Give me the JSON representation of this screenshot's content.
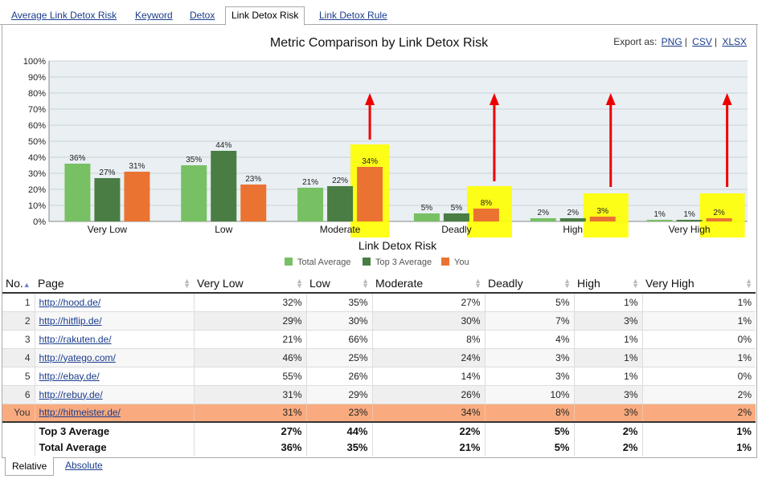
{
  "tabs": [
    {
      "label": "Average Link Detox Risk"
    },
    {
      "label": "Keyword"
    },
    {
      "label": "Detox"
    },
    {
      "label": "Link Detox Risk"
    },
    {
      "label": "Link Detox Rule"
    }
  ],
  "export": {
    "label": "Export as:",
    "png": "PNG",
    "csv": "CSV",
    "xlsx": "XLSX"
  },
  "colors": {
    "total_avg": "#77c063",
    "top3_avg": "#4a7d43",
    "you": "#ea7332",
    "highlight": "#ffff00",
    "arrow": "#ee0000",
    "you_row": "#f9ab7f"
  },
  "chart_data": {
    "type": "bar",
    "title": "Metric Comparison by Link Detox Risk",
    "xlabel": "Link Detox Risk",
    "ylabel": "",
    "ylim": [
      0,
      100
    ],
    "yticks": [
      "0%",
      "10%",
      "20%",
      "30%",
      "40%",
      "50%",
      "60%",
      "70%",
      "80%",
      "90%",
      "100%"
    ],
    "categories": [
      "Very Low",
      "Low",
      "Moderate",
      "Deadly",
      "High",
      "Very High"
    ],
    "series": [
      {
        "name": "Total Average",
        "values": [
          36,
          35,
          21,
          5,
          2,
          1
        ]
      },
      {
        "name": "Top 3 Average",
        "values": [
          27,
          44,
          22,
          5,
          2,
          1
        ]
      },
      {
        "name": "You",
        "values": [
          31,
          23,
          34,
          8,
          3,
          2
        ]
      }
    ],
    "legend": "bottom",
    "grid": true,
    "highlighted_series": "You",
    "arrow_categories": [
      "Moderate",
      "Deadly",
      "High",
      "Very High"
    ]
  },
  "table": {
    "headers": [
      "No.",
      "Page",
      "Very Low",
      "Low",
      "Moderate",
      "Deadly",
      "High",
      "Very High"
    ],
    "rows": [
      {
        "no": "1",
        "page": "http://hood.de/",
        "vals": [
          "32%",
          "35%",
          "27%",
          "5%",
          "1%",
          "1%"
        ]
      },
      {
        "no": "2",
        "page": "http://hitflip.de/",
        "vals": [
          "29%",
          "30%",
          "30%",
          "7%",
          "3%",
          "1%"
        ]
      },
      {
        "no": "3",
        "page": "http://rakuten.de/",
        "vals": [
          "21%",
          "66%",
          "8%",
          "4%",
          "1%",
          "0%"
        ]
      },
      {
        "no": "4",
        "page": "http://yatego.com/",
        "vals": [
          "46%",
          "25%",
          "24%",
          "3%",
          "1%",
          "1%"
        ]
      },
      {
        "no": "5",
        "page": "http://ebay.de/",
        "vals": [
          "55%",
          "26%",
          "14%",
          "3%",
          "1%",
          "0%"
        ]
      },
      {
        "no": "6",
        "page": "http://rebuy.de/",
        "vals": [
          "31%",
          "29%",
          "26%",
          "10%",
          "3%",
          "2%"
        ]
      },
      {
        "no": "You",
        "page": "http://hitmeister.de/",
        "vals": [
          "31%",
          "23%",
          "34%",
          "8%",
          "3%",
          "2%"
        ]
      }
    ],
    "aggregates": [
      {
        "label": "Top 3 Average",
        "vals": [
          "27%",
          "44%",
          "22%",
          "5%",
          "2%",
          "1%"
        ]
      },
      {
        "label": "Total Average",
        "vals": [
          "36%",
          "35%",
          "21%",
          "5%",
          "2%",
          "1%"
        ]
      }
    ]
  },
  "bottom_tabs": [
    {
      "label": "Relative"
    },
    {
      "label": "Absolute"
    }
  ]
}
